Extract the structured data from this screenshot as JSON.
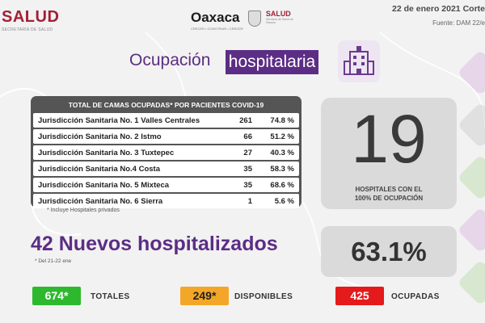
{
  "header": {
    "salud_logo": "SALUD",
    "salud_logo_sub": "SECRETARÍA DE SALUD",
    "oaxaca_logo": "Oaxaca",
    "oaxaca_logo_sub": "CRECER • CONSTRUIR • CRECER",
    "salud_mini_logo": "SALUD",
    "salud_mini_sub": "Servicios de Salud de Oaxaca",
    "date": "22 de enero 2021 Corte",
    "source": "Fuente: DAM 22/e"
  },
  "title": {
    "part1": "Ocupación",
    "part2": "hospitalaria"
  },
  "table": {
    "header": "TOTAL DE CAMAS OCUPADAS* POR PACIENTES COVID-19",
    "rows": [
      {
        "name": "Jurisdicción Sanitaria No. 1 Valles Centrales",
        "count": "261",
        "pct": "74.8 %"
      },
      {
        "name": "Jurisdicción Sanitaria No. 2 Istmo",
        "count": "66",
        "pct": "51.2 %"
      },
      {
        "name": "Jurisdicción Sanitaria No. 3 Tuxtepec",
        "count": "27",
        "pct": "40.3 %"
      },
      {
        "name": "Jurisdicción Sanitaria No.4 Costa",
        "count": "35",
        "pct": "58.3 %"
      },
      {
        "name": "Jurisdicción Sanitaria No. 5 Mixteca",
        "count": "35",
        "pct": "68.6 %"
      },
      {
        "name": "Jurisdicción Sanitaria No. 6 Sierra",
        "count": "1",
        "pct": "5.6 %"
      }
    ],
    "note": "* Incluye Hospitales privados"
  },
  "hospitals_full": {
    "value": "19",
    "line1": "HOSPITALES CON EL",
    "line2": "100% DE OCUPACIÓN"
  },
  "occupancy_pct": "63.1%",
  "new_hospitalized": {
    "title": "42 Nuevos hospitalizados",
    "subtitle": "* Del 21-22 ene"
  },
  "stats": {
    "total_value": "674*",
    "total_label": "TOTALES",
    "available_value": "249*",
    "available_label": "DISPONIBLES",
    "occupied_value": "425",
    "occupied_label": "OCUPADAS"
  },
  "colors": {
    "purple": "#5c2d85",
    "salud_red": "#a32036",
    "green": "#2eb82e",
    "yellow": "#f4a628",
    "red": "#e51a1a"
  },
  "icons": [
    "hospital-building-icon",
    "shield-icon"
  ]
}
